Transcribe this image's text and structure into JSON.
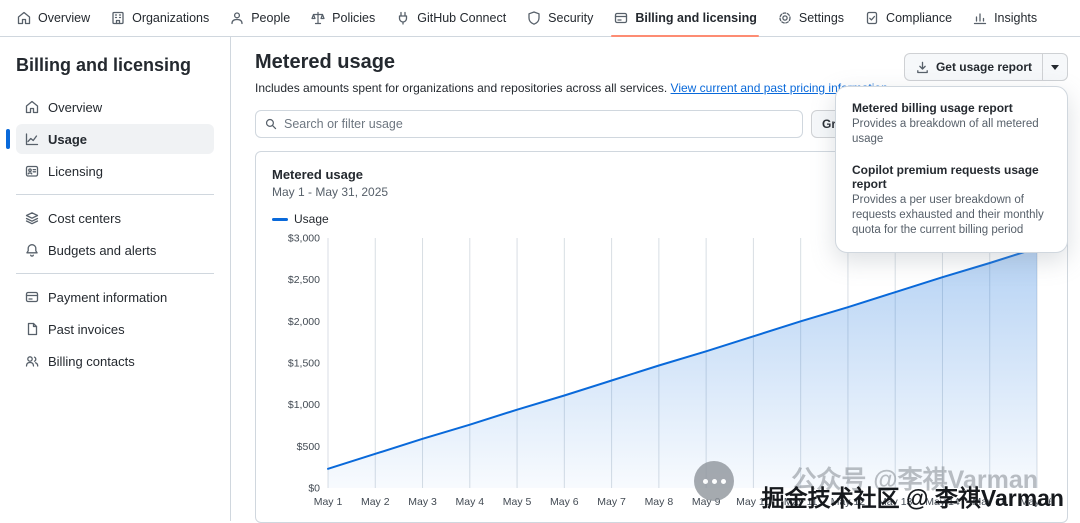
{
  "top_nav": {
    "items": [
      {
        "label": "Overview",
        "icon": "home-icon"
      },
      {
        "label": "Organizations",
        "icon": "organization-icon"
      },
      {
        "label": "People",
        "icon": "person-icon"
      },
      {
        "label": "Policies",
        "icon": "law-icon"
      },
      {
        "label": "GitHub Connect",
        "icon": "plug-icon"
      },
      {
        "label": "Security",
        "icon": "shield-icon"
      },
      {
        "label": "Billing and licensing",
        "icon": "credit-card-icon",
        "active": true
      },
      {
        "label": "Settings",
        "icon": "gear-icon"
      },
      {
        "label": "Compliance",
        "icon": "checklist-icon"
      },
      {
        "label": "Insights",
        "icon": "bar-graph-icon"
      }
    ]
  },
  "sidebar": {
    "title": "Billing and licensing",
    "items": [
      {
        "label": "Overview"
      },
      {
        "label": "Usage",
        "selected": true
      },
      {
        "label": "Licensing"
      },
      {
        "label": "Cost centers"
      },
      {
        "label": "Budgets and alerts"
      },
      {
        "label": "Payment information"
      },
      {
        "label": "Past invoices"
      },
      {
        "label": "Billing contacts"
      }
    ]
  },
  "main": {
    "title": "Metered usage",
    "description": "Includes amounts spent for organizations and repositories across all services. ",
    "description_link": "View current and past pricing information",
    "description_period": ".",
    "search": {
      "placeholder": "Search or filter usage"
    },
    "group_button_label": "Group",
    "report_button_label": "Get usage report"
  },
  "dropdown": {
    "items": [
      {
        "title": "Metered billing usage report",
        "description": "Provides a breakdown of all metered usage"
      },
      {
        "title": "Copilot premium requests usage report",
        "description": "Provides a per user breakdown of requests exhausted and their monthly quota for the current billing period"
      }
    ]
  },
  "card": {
    "title": "Metered usage",
    "subtitle": "May 1 - May 31, 2025",
    "legend": "Usage"
  },
  "watermark": {
    "faint": "公众号 @李祺Varman",
    "main": "掘金技术社区 @ 李祺Varman"
  },
  "chart_data": {
    "type": "line",
    "title": "Metered usage",
    "series_name": "Usage",
    "x": [
      "May 1",
      "May 2",
      "May 3",
      "May 4",
      "May 5",
      "May 6",
      "May 7",
      "May 8",
      "May 9",
      "May 10",
      "May 11",
      "May 12",
      "May 13",
      "May 14",
      "May 15",
      "May 16"
    ],
    "values": [
      230,
      410,
      590,
      760,
      940,
      1110,
      1290,
      1470,
      1640,
      1820,
      2000,
      2170,
      2350,
      2530,
      2700,
      2880
    ],
    "ylim": [
      0,
      3000
    ],
    "yticks": [
      {
        "value": 0,
        "label": "$0"
      },
      {
        "value": 500,
        "label": "$500"
      },
      {
        "value": 1000,
        "label": "$1,000"
      },
      {
        "value": 1500,
        "label": "$1,500"
      },
      {
        "value": 2000,
        "label": "$2,000"
      },
      {
        "value": 2500,
        "label": "$2,500"
      },
      {
        "value": 3000,
        "label": "$3,000"
      }
    ],
    "color": "#0969da",
    "area_fill": true,
    "grid": "vertical",
    "legend_position": "top-left"
  }
}
